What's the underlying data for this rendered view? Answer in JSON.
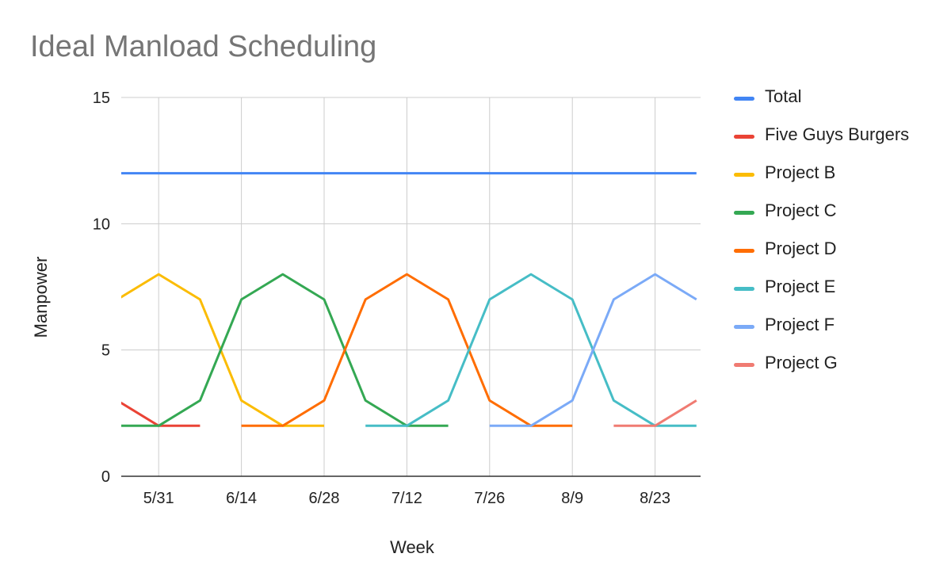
{
  "chart_data": {
    "type": "line",
    "title": "Ideal Manload Scheduling",
    "xlabel": "Week",
    "ylabel": "Manpower",
    "ylim": [
      0,
      15
    ],
    "yticks": [
      "0",
      "5",
      "10",
      "15"
    ],
    "xtick_labels": [
      "5/31",
      "6/14",
      "6/28",
      "7/12",
      "7/26",
      "8/9",
      "8/23"
    ],
    "x": [
      "5/24",
      "5/31",
      "6/7",
      "6/14",
      "6/21",
      "6/28",
      "7/5",
      "7/12",
      "7/19",
      "7/26",
      "8/2",
      "8/9",
      "8/16",
      "8/23",
      "8/30"
    ],
    "grid": true,
    "legend_position": "right",
    "series": [
      {
        "name": "Total",
        "color": "#4285F4",
        "values": [
          12,
          12,
          12,
          12,
          12,
          12,
          12,
          12,
          12,
          12,
          12,
          12,
          12,
          12,
          12
        ]
      },
      {
        "name": "Five Guys Burgers",
        "color": "#EA4335",
        "values": [
          3,
          2,
          2,
          null,
          null,
          null,
          null,
          null,
          null,
          null,
          null,
          null,
          null,
          null,
          null
        ]
      },
      {
        "name": "Project B",
        "color": "#FBBC04",
        "values": [
          7,
          8,
          7,
          3,
          2,
          2,
          null,
          null,
          null,
          null,
          null,
          null,
          null,
          null,
          null
        ]
      },
      {
        "name": "Project C",
        "color": "#34A853",
        "values": [
          2,
          2,
          3,
          7,
          8,
          7,
          3,
          2,
          2,
          null,
          null,
          null,
          null,
          null,
          null
        ]
      },
      {
        "name": "Project D",
        "color": "#FF6D01",
        "values": [
          null,
          null,
          null,
          2,
          2,
          3,
          7,
          8,
          7,
          3,
          2,
          2,
          null,
          null,
          null
        ]
      },
      {
        "name": "Project E",
        "color": "#46BDC6",
        "values": [
          null,
          null,
          null,
          null,
          null,
          null,
          2,
          2,
          3,
          7,
          8,
          7,
          3,
          2,
          2
        ]
      },
      {
        "name": "Project F",
        "color": "#7BAAF7",
        "values": [
          null,
          null,
          null,
          null,
          null,
          null,
          null,
          null,
          null,
          2,
          2,
          3,
          7,
          8,
          7
        ]
      },
      {
        "name": "Project G",
        "color": "#F07B72",
        "values": [
          null,
          null,
          null,
          null,
          null,
          null,
          null,
          null,
          null,
          null,
          null,
          null,
          2,
          2,
          3
        ]
      }
    ]
  }
}
